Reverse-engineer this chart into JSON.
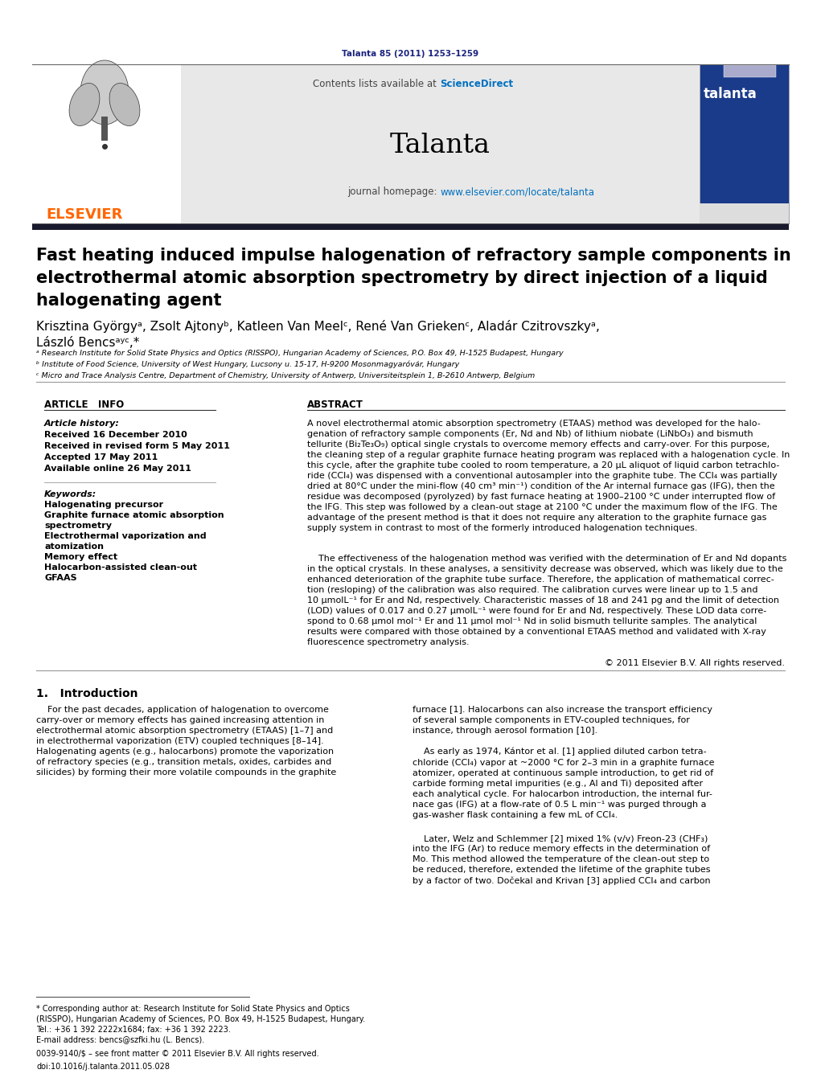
{
  "bg_color": "#ffffff",
  "header_bg": "#e8e8e8",
  "dark_bar_color": "#1a1a2e",
  "elsevier_orange": "#ff6600",
  "sciencedirect_blue": "#0070c0",
  "link_blue": "#2471a3",
  "journal_url_blue": "#0070c0",
  "journal_info": "Talanta 85 (2011) 1253–1259",
  "journal_name": "Talanta",
  "contents_text": "Contents lists available at ",
  "sciencedirect_label": "ScienceDirect",
  "homepage_prefix": "journal homepage: ",
  "homepage_url": "www.elsevier.com/locate/talanta",
  "elsevier_label": "ELSEVIER",
  "title_line1": "Fast heating induced impulse halogenation of refractory sample components in",
  "title_line2": "electrothermal atomic absorption spectrometry by direct injection of a liquid",
  "title_line3": "halogenating agent",
  "authors_line1": "Krisztina Györgyᵃ, Zsolt Ajtonyᵇ, Katleen Van Meelᶜ, René Van Griekenᶜ, Aladár Czitrovszkyᵃ,",
  "authors_line2": "László Bencsᵃʸᶜ,*",
  "affil_a": "ᵃ Research Institute for Solid State Physics and Optics (RISSPO), Hungarian Academy of Sciences, P.O. Box 49, H-1525 Budapest, Hungary",
  "affil_b": "ᵇ Institute of Food Science, University of West Hungary, Lucsony u. 15-17, H-9200 Mosonmagyaróvár, Hungary",
  "affil_c": "ᶜ Micro and Trace Analysis Centre, Department of Chemistry, University of Antwerp, Universiteitsplein 1, B-2610 Antwerp, Belgium",
  "article_info_header": "ARTICLE   INFO",
  "abstract_header": "ABSTRACT",
  "article_history_label": "Article history:",
  "received_1": "Received 16 December 2010",
  "received_revised": "Received in revised form 5 May 2011",
  "accepted": "Accepted 17 May 2011",
  "available": "Available online 26 May 2011",
  "keywords_label": "Keywords:",
  "keywords": [
    "Halogenating precursor",
    "Graphite furnace atomic absorption",
    "spectrometry",
    "Electrothermal vaporization and",
    "atomization",
    "Memory effect",
    "Halocarbon-assisted clean-out",
    "GFAAS"
  ],
  "abstract_p1": "A novel electrothermal atomic absorption spectrometry (ETAAS) method was developed for the halo-\ngenation of refractory sample components (Er, Nd and Nb) of lithium niobate (LiNbO₃) and bismuth\ntellurite (Bi₂Te₃O₉) optical single crystals to overcome memory effects and carry-over. For this purpose,\nthe cleaning step of a regular graphite furnace heating program was replaced with a halogenation cycle. In\nthis cycle, after the graphite tube cooled to room temperature, a 20 μL aliquot of liquid carbon tetrachlo-\nride (CCl₄) was dispensed with a conventional autosampler into the graphite tube. The CCl₄ was partially\ndried at 80°C under the mini-flow (40 cm³ min⁻¹) condition of the Ar internal furnace gas (IFG), then the\nresidue was decomposed (pyrolyzed) by fast furnace heating at 1900–2100 °C under interrupted flow of\nthe IFG. This step was followed by a clean-out stage at 2100 °C under the maximum flow of the IFG. The\nadvantage of the present method is that it does not require any alteration to the graphite furnace gas\nsupply system in contrast to most of the formerly introduced halogenation techniques.",
  "abstract_p2": "    The effectiveness of the halogenation method was verified with the determination of Er and Nd dopants\nin the optical crystals. In these analyses, a sensitivity decrease was observed, which was likely due to the\nenhanced deterioration of the graphite tube surface. Therefore, the application of mathematical correc-\ntion (resloping) of the calibration was also required. The calibration curves were linear up to 1.5 and\n10 μmolL⁻¹ for Er and Nd, respectively. Characteristic masses of 18 and 241 pg and the limit of detection\n(LOD) values of 0.017 and 0.27 μmolL⁻¹ were found for Er and Nd, respectively. These LOD data corre-\nspond to 0.68 μmol mol⁻¹ Er and 11 μmol mol⁻¹ Nd in solid bismuth tellurite samples. The analytical\nresults were compared with those obtained by a conventional ETAAS method and validated with X-ray\nfluorescence spectrometry analysis.",
  "copyright": "© 2011 Elsevier B.V. All rights reserved.",
  "section_intro": "1.   Introduction",
  "intro_col1_indent": "    For the past decades, application of halogenation to overcome\ncarry-over or memory effects has gained increasing attention in\nelectrothermal atomic absorption spectrometry (ETAAS) [1–7] and\nin electrothermal vaporization (ETV) coupled techniques [8–14].\nHalogenating agents (e.g., halocarbons) promote the vaporization\nof refractory species (e.g., transition metals, oxides, carbides and\nsilicides) by forming their more volatile compounds in the graphite",
  "intro_col2_p1": "furnace [1]. Halocarbons can also increase the transport efficiency\nof several sample components in ETV-coupled techniques, for\ninstance, through aerosol formation [10].",
  "intro_col2_p2": "    As early as 1974, Kántor et al. [1] applied diluted carbon tetra-\nchloride (CCl₄) vapor at ~2000 °C for 2–3 min in a graphite furnace\natomizer, operated at continuous sample introduction, to get rid of\ncarbide forming metal impurities (e.g., Al and Ti) deposited after\neach analytical cycle. For halocarbon introduction, the internal fur-\nnace gas (IFG) at a flow-rate of 0.5 L min⁻¹ was purged through a\ngas-washer flask containing a few mL of CCl₄.",
  "intro_col2_p3": "    Later, Welz and Schlemmer [2] mixed 1% (v/v) Freon-23 (CHF₃)\ninto the IFG (Ar) to reduce memory effects in the determination of\nMo. This method allowed the temperature of the clean-out step to\nbe reduced, therefore, extended the lifetime of the graphite tubes\nby a factor of two. Dočekal and Krivan [3] applied CCl₄ and carbon",
  "footnote_line": "* Corresponding author at: Research Institute for Solid State Physics and Optics\n(RISSPO), Hungarian Academy of Sciences, P.O. Box 49, H-1525 Budapest, Hungary.\nTel.: +36 1 392 2222x1684; fax: +36 1 392 2223.",
  "footnote_email": "E-mail address: bencs@szfki.hu (L. Bencs).",
  "footnote_issn": "0039-9140/$ – see front matter © 2011 Elsevier B.V. All rights reserved.",
  "footnote_doi": "doi:10.1016/j.talanta.2011.05.028"
}
